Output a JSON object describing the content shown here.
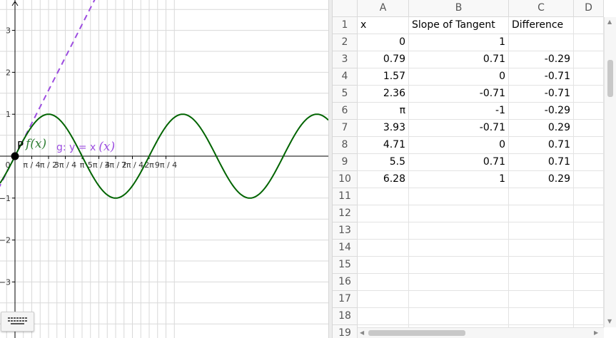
{
  "graphics": {
    "x_tick_labels": [
      "0",
      "π / 4",
      "π / 2",
      "3π / 4",
      "π",
      "5π / 4",
      "3π / 2",
      "7π / 4",
      "2π",
      "9π / 4"
    ],
    "y_tick_labels": [
      "3",
      "2",
      "1",
      "−1",
      "−2",
      "−3"
    ],
    "point_label": "P",
    "f_label": "f(x)",
    "g_label": "g: y = x",
    "g_label_suffix": "(x)",
    "colors": {
      "sine_curve": "#006400",
      "tangent_line": "#9c4de0",
      "grid": "#d9d9d9",
      "axis": "#000000",
      "point": "#000000"
    },
    "keyboard_icon": "keyboard-icon"
  },
  "spreadsheet": {
    "columns": [
      "A",
      "B",
      "C",
      "D"
    ],
    "row_numbers": [
      "1",
      "2",
      "3",
      "4",
      "5",
      "6",
      "7",
      "8",
      "9",
      "10",
      "11",
      "12",
      "13",
      "14",
      "15",
      "16",
      "17",
      "18",
      "19"
    ],
    "rows": [
      [
        "x",
        "Slope of Tangent",
        "Difference",
        ""
      ],
      [
        "0",
        "1",
        "",
        ""
      ],
      [
        "0.79",
        "0.71",
        "-0.29",
        ""
      ],
      [
        "1.57",
        "0",
        "-0.71",
        ""
      ],
      [
        "2.36",
        "-0.71",
        "-0.71",
        ""
      ],
      [
        "π",
        "-1",
        "-0.29",
        ""
      ],
      [
        "3.93",
        "-0.71",
        "0.29",
        ""
      ],
      [
        "4.71",
        "0",
        "0.71",
        ""
      ],
      [
        "5.5",
        "0.71",
        "0.71",
        ""
      ],
      [
        "6.28",
        "1",
        "0.29",
        ""
      ]
    ]
  }
}
